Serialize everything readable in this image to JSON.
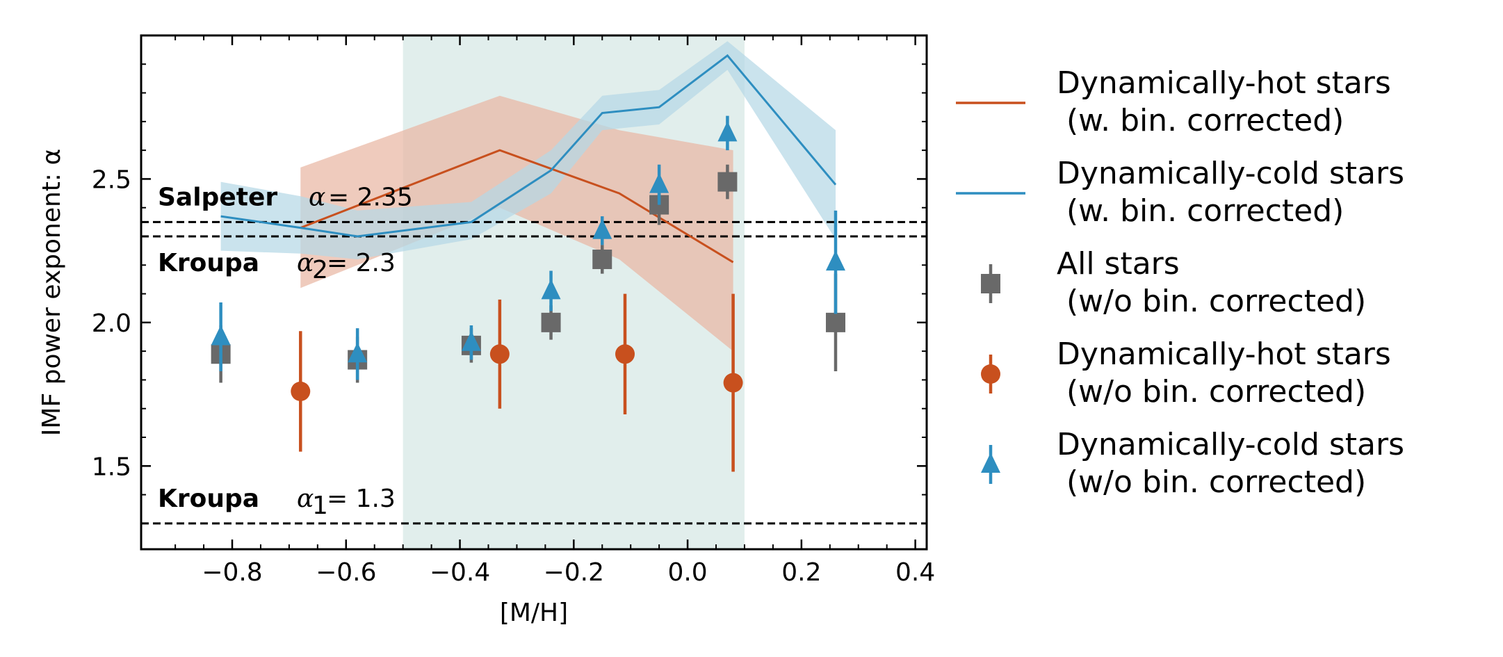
{
  "chart_data": {
    "type": "scatter",
    "xlabel": "[M/H]",
    "ylabel": "IMF power exponent: α",
    "xlim": [
      -0.96,
      0.42
    ],
    "ylim": [
      1.21,
      3.0
    ],
    "x_ticks": [
      -0.8,
      -0.6,
      -0.4,
      -0.2,
      0.0,
      0.2,
      0.4
    ],
    "x_tick_labels": [
      "−0.8",
      "−0.6",
      "−0.4",
      "−0.2",
      "0.0",
      "0.2",
      "0.4"
    ],
    "y_ticks": [
      1.5,
      2.0,
      2.5
    ],
    "y_tick_labels": [
      "1.5",
      "2.0",
      "2.5"
    ],
    "grid": false,
    "legend_position": "outside-right",
    "shaded_region": {
      "x_range": [
        -0.5,
        0.1
      ],
      "color": "#e1eeec"
    },
    "reference_lines": [
      {
        "y": 2.35,
        "name": "Salpeter",
        "math": "α",
        "sub": "",
        "value": "= 2.35"
      },
      {
        "y": 2.3,
        "name": "Kroupa",
        "math": "α",
        "sub": "2",
        "value": "= 2.3"
      },
      {
        "y": 1.3,
        "name": "Kroupa",
        "math": "α",
        "sub": "1",
        "value": "= 1.3"
      }
    ],
    "bands": [
      {
        "color": "#c8501e",
        "fill": "#e9b7a3",
        "x": [
          -0.68,
          -0.33,
          -0.12,
          0.08
        ],
        "y": [
          2.33,
          2.6,
          2.45,
          2.21
        ],
        "upper": [
          2.54,
          2.79,
          2.67,
          2.6
        ],
        "lower": [
          2.12,
          2.4,
          2.22,
          1.9
        ]
      },
      {
        "color": "#2e8ec0",
        "fill": "#b5d8e6",
        "x": [
          -0.82,
          -0.68,
          -0.58,
          -0.38,
          -0.24,
          -0.15,
          -0.05,
          0.07,
          0.26
        ],
        "y": [
          2.37,
          2.33,
          2.3,
          2.35,
          2.53,
          2.73,
          2.75,
          2.93,
          2.48
        ],
        "upper": [
          2.49,
          2.44,
          2.39,
          2.42,
          2.6,
          2.79,
          2.81,
          2.98,
          2.67
        ],
        "lower": [
          2.25,
          2.24,
          2.22,
          2.29,
          2.45,
          2.67,
          2.69,
          2.88,
          2.29
        ]
      }
    ],
    "series": [
      {
        "name": "All stars\n (w/o bin. corrected)",
        "marker": "square",
        "color": "#696969",
        "x": [
          -0.82,
          -0.58,
          -0.38,
          -0.24,
          -0.15,
          -0.05,
          0.07,
          0.26
        ],
        "y": [
          1.89,
          1.87,
          1.92,
          2.0,
          2.22,
          2.41,
          2.49,
          2.0
        ],
        "err": [
          0.1,
          0.08,
          0.06,
          0.06,
          0.05,
          0.07,
          0.06,
          0.17
        ]
      },
      {
        "name": "Dynamically-hot stars\n (w/o bin. corrected)",
        "marker": "circle",
        "color": "#c8501e",
        "x": [
          -0.68,
          -0.33,
          -0.11,
          0.08
        ],
        "y": [
          1.76,
          1.89,
          1.89,
          1.79
        ],
        "err": [
          0.21,
          0.19,
          0.21,
          0.31
        ]
      },
      {
        "name": "Dynamically-cold stars\n (w/o bin. corrected)",
        "marker": "triangle",
        "color": "#2e8ec0",
        "x": [
          -0.82,
          -0.58,
          -0.38,
          -0.24,
          -0.15,
          -0.05,
          0.07,
          0.26
        ],
        "y": [
          1.95,
          1.89,
          1.93,
          2.11,
          2.32,
          2.48,
          2.66,
          2.21
        ],
        "err": [
          0.12,
          0.09,
          0.06,
          0.07,
          0.05,
          0.07,
          0.06,
          0.18
        ]
      }
    ],
    "legend": [
      {
        "type": "line",
        "color": "#c8501e",
        "line1": "Dynamically-hot stars",
        "line2": " (w. bin. corrected)"
      },
      {
        "type": "line",
        "color": "#2e8ec0",
        "line1": "Dynamically-cold stars",
        "line2": " (w. bin. corrected)"
      },
      {
        "type": "square",
        "color": "#696969",
        "line1": "All stars",
        "line2": " (w/o bin. corrected)"
      },
      {
        "type": "circle",
        "color": "#c8501e",
        "line1": "Dynamically-hot stars",
        "line2": " (w/o bin. corrected)"
      },
      {
        "type": "triangle",
        "color": "#2e8ec0",
        "line1": "Dynamically-cold stars",
        "line2": " (w/o bin. corrected)"
      }
    ]
  }
}
